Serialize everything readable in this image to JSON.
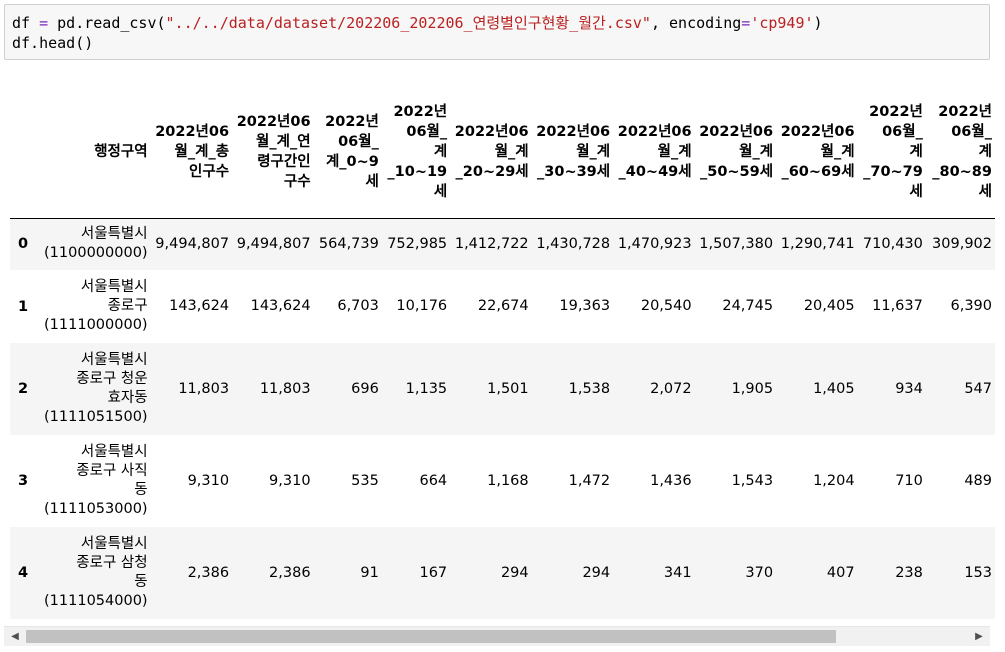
{
  "code": {
    "line1": {
      "a": "df ",
      "op": "=",
      "b": " pd.read_csv(",
      "s1": "\"../../data/dataset/202206_202206_연령별인구현황_월간.csv\"",
      "c": ", encoding",
      "op2": "=",
      "s2": "'cp949'",
      "d": ")"
    },
    "line2": "df.head()"
  },
  "table": {
    "columns": [
      [
        "행정구역"
      ],
      [
        "2022년06",
        "월_계_총",
        "인구수"
      ],
      [
        "2022년06",
        "월_계_연",
        "령구간인",
        "구수"
      ],
      [
        "2022년",
        "06월_",
        "계_0~9",
        "세"
      ],
      [
        "2022년",
        "06월_",
        "계",
        "_10~19",
        "세"
      ],
      [
        "2022년06",
        "월_계",
        "_20~29세"
      ],
      [
        "2022년06",
        "월_계",
        "_30~39세"
      ],
      [
        "2022년06",
        "월_계",
        "_40~49세"
      ],
      [
        "2022년06",
        "월_계",
        "_50~59세"
      ],
      [
        "2022년06",
        "월_계",
        "_60~69세"
      ],
      [
        "2022년",
        "06월_",
        "계",
        "_70~79",
        "세"
      ],
      [
        "2022년",
        "06월_",
        "계",
        "_80~89",
        "세"
      ]
    ],
    "rows": [
      {
        "index": "0",
        "region": [
          "서울특별시",
          "(1100000000)"
        ],
        "values": [
          "9,494,807",
          "9,494,807",
          "564,739",
          "752,985",
          "1,412,722",
          "1,430,728",
          "1,470,923",
          "1,507,380",
          "1,290,741",
          "710,430",
          "309,902"
        ]
      },
      {
        "index": "1",
        "region": [
          "서울특별시",
          "종로구",
          "(1111000000)"
        ],
        "values": [
          "143,624",
          "143,624",
          "6,703",
          "10,176",
          "22,674",
          "19,363",
          "20,540",
          "24,745",
          "20,405",
          "11,637",
          "6,390"
        ]
      },
      {
        "index": "2",
        "region": [
          "서울특별시",
          "종로구 청운",
          "효자동",
          "(1111051500)"
        ],
        "values": [
          "11,803",
          "11,803",
          "696",
          "1,135",
          "1,501",
          "1,538",
          "2,072",
          "1,905",
          "1,405",
          "934",
          "547"
        ]
      },
      {
        "index": "3",
        "region": [
          "서울특별시",
          "종로구 사직",
          "동",
          "(1111053000)"
        ],
        "values": [
          "9,310",
          "9,310",
          "535",
          "664",
          "1,168",
          "1,472",
          "1,436",
          "1,543",
          "1,204",
          "710",
          "489"
        ]
      },
      {
        "index": "4",
        "region": [
          "서울특별시",
          "종로구 삼청",
          "동",
          "(1111054000)"
        ],
        "values": [
          "2,386",
          "2,386",
          "91",
          "167",
          "294",
          "294",
          "341",
          "370",
          "407",
          "238",
          "153"
        ]
      }
    ]
  },
  "scrollbar": {
    "left_arrow": "◀",
    "right_arrow": "▶",
    "thumb_fraction": 0.86
  }
}
